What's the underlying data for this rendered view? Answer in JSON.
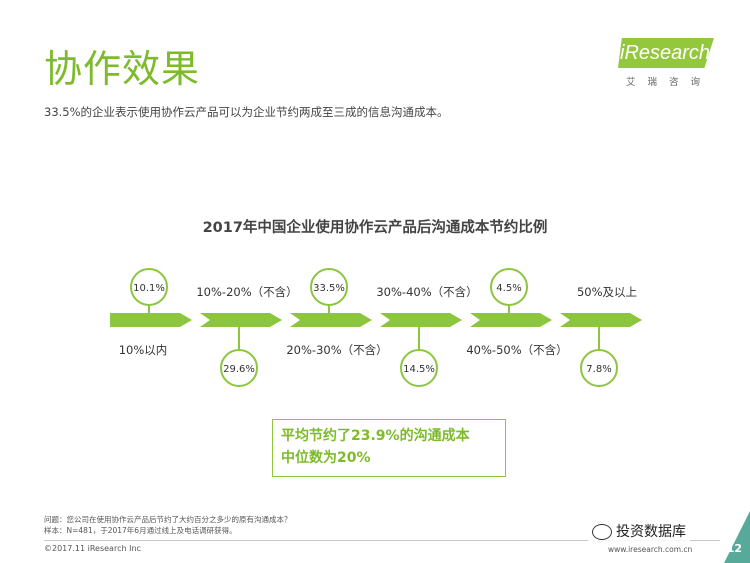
{
  "header": {
    "title": "协作效果",
    "subtitle": "33.5%的企业表示使用协作云产品可以为企业节约两成至三成的信息沟通成本。",
    "brand_name": "iResearch",
    "brand_sub": "艾瑞咨询"
  },
  "chart_data": {
    "type": "bar",
    "title": "2017年中国企业使用协作云产品后沟通成本节约比例",
    "categories": [
      "10%以内",
      "10%-20%（不含）",
      "20%-30%（不含）",
      "30%-40%（不含）",
      "40%-50%（不含）",
      "50%及以上"
    ],
    "value_labels": [
      "10.1%",
      "29.6%",
      "33.5%",
      "14.5%",
      "4.5%",
      "7.8%"
    ],
    "values": [
      10.1,
      29.6,
      33.5,
      14.5,
      4.5,
      7.8
    ],
    "value_position": [
      "above",
      "below",
      "above",
      "below",
      "above",
      "below"
    ],
    "unit": "%",
    "colors": {
      "arrow": "#8cc63f",
      "bubble_border": "#8cc63f",
      "text": "#333333"
    }
  },
  "callout": {
    "line1": "平均节约了23.9%的沟通成本",
    "line2": "中位数为20%"
  },
  "footer": {
    "note1": "问题：您公司在使用协作云产品后节约了大约百分之多少的原有沟通成本？",
    "note2": "样本：N=481，于2017年6月通过线上及电话调研获得。",
    "copyright": "©2017.11 iResearch Inc",
    "url": "www.iresearch.com.cn",
    "page": "12",
    "watermark": "投资数据库"
  }
}
